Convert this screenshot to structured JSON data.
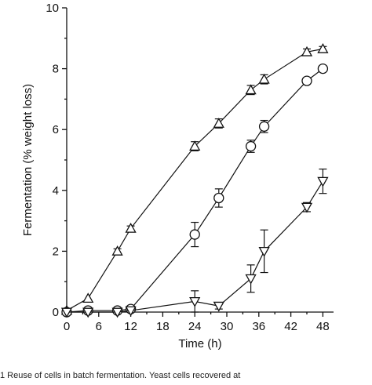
{
  "chart_data": {
    "type": "line",
    "xlabel": "Time (h)",
    "ylabel": "Fermentation (% weight loss)",
    "xlim": [
      0,
      50
    ],
    "ylim": [
      0,
      10
    ],
    "xticks": [
      0,
      6,
      12,
      18,
      24,
      30,
      36,
      42,
      48
    ],
    "yticks": [
      0,
      2,
      4,
      6,
      8,
      10
    ],
    "grid": false,
    "legend": "none",
    "series": [
      {
        "marker": "triangle-up",
        "x": [
          0,
          4,
          9.5,
          12,
          24,
          28.5,
          34.5,
          37,
          45,
          48
        ],
        "y": [
          0.05,
          0.45,
          2.0,
          2.75,
          5.45,
          6.2,
          7.3,
          7.65,
          8.55,
          8.65
        ],
        "err": [
          0.05,
          0.05,
          0.08,
          0.08,
          0.15,
          0.15,
          0.15,
          0.15,
          0.1,
          0.08
        ]
      },
      {
        "marker": "circle",
        "x": [
          0,
          4,
          9.5,
          12,
          24,
          28.5,
          34.5,
          37,
          45,
          48
        ],
        "y": [
          0.0,
          0.05,
          0.05,
          0.1,
          2.55,
          3.75,
          5.45,
          6.1,
          7.6,
          8.0
        ],
        "err": [
          0.05,
          0.05,
          0.05,
          0.05,
          0.4,
          0.3,
          0.2,
          0.2,
          0.1,
          0.08
        ]
      },
      {
        "marker": "triangle-down",
        "x": [
          0,
          4,
          9.5,
          12,
          24,
          28.5,
          34.5,
          37,
          45,
          48
        ],
        "y": [
          0.0,
          0.0,
          0.0,
          0.05,
          0.35,
          0.2,
          1.1,
          2.0,
          3.45,
          4.3
        ],
        "err": [
          0.05,
          0.05,
          0.05,
          0.05,
          0.35,
          0.1,
          0.45,
          0.7,
          0.15,
          0.4
        ]
      }
    ]
  },
  "caption": "1  Reuse of cells in batch fermentation. Yeast cells recovered at"
}
